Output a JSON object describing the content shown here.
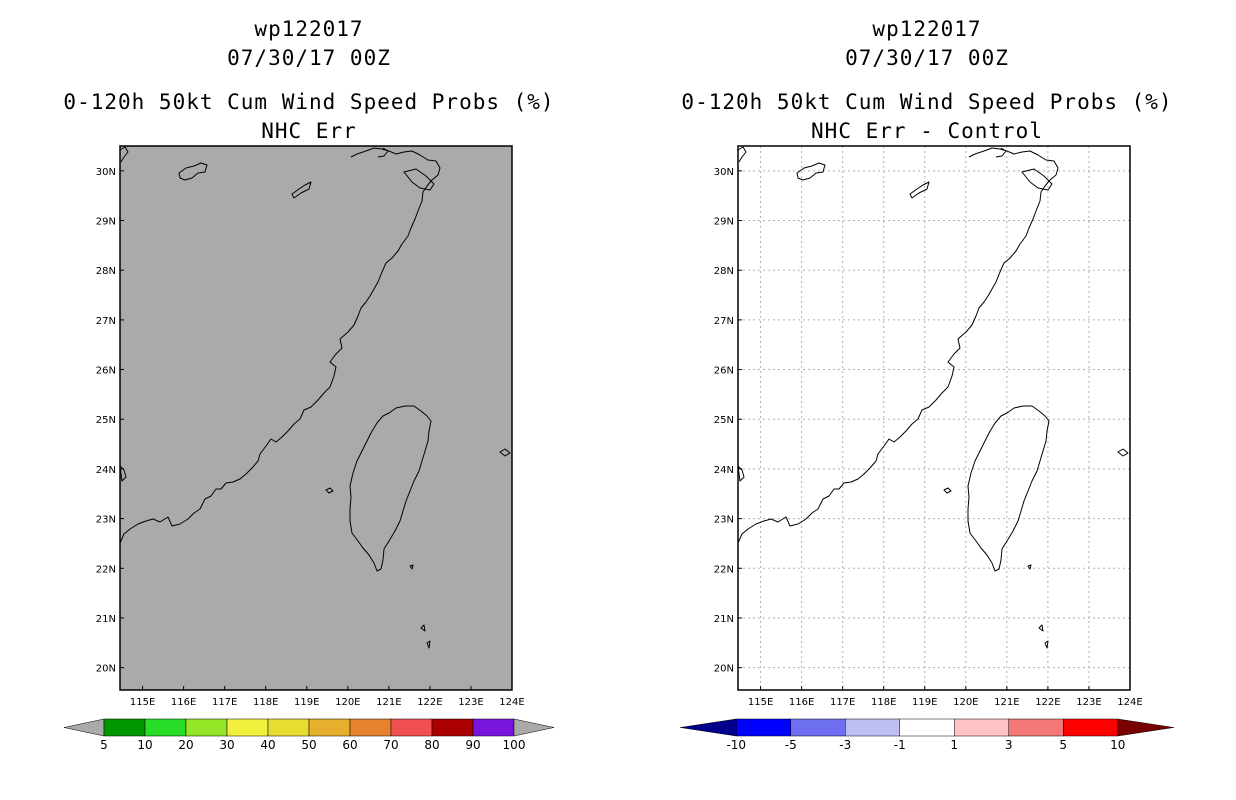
{
  "panels": [
    {
      "id": "left",
      "storm_id": "wp122017",
      "date": "07/30/17 00Z",
      "product": "0-120h 50kt Cum Wind Speed Probs (%)",
      "subtitle": "NHC Err",
      "map_fill": "#aaaaaa",
      "grid": false,
      "colorbar": {
        "labels": [
          "5",
          "10",
          "20",
          "30",
          "40",
          "50",
          "60",
          "70",
          "80",
          "90",
          "100"
        ],
        "colors": [
          "#009600",
          "#28dc28",
          "#96e628",
          "#f0f03c",
          "#e6dc32",
          "#e6af2d",
          "#e6822d",
          "#f05050",
          "#aa0000",
          "#7814dc"
        ],
        "under_color": "#aaaaaa",
        "over_color": "#aaaaaa"
      }
    },
    {
      "id": "right",
      "storm_id": "wp122017",
      "date": "07/30/17 00Z",
      "product": "0-120h 50kt Cum Wind Speed Probs (%)",
      "subtitle": "NHC Err - Control",
      "map_fill": "#ffffff",
      "grid": true,
      "colorbar": {
        "labels": [
          "-10",
          "-5",
          "-3",
          "-1",
          "1",
          "3",
          "5",
          "10"
        ],
        "colors": [
          "#0000ff",
          "#6e6ef0",
          "#bebef5",
          "#ffffff",
          "#ffc3c3",
          "#f57878",
          "#ff0000"
        ],
        "under_color": "#00008c",
        "over_color": "#780000"
      }
    }
  ],
  "map": {
    "lon_labels": [
      "115E",
      "116E",
      "117E",
      "118E",
      "119E",
      "120E",
      "121E",
      "122E",
      "123E",
      "124E"
    ],
    "lat_labels": [
      "30N",
      "29N",
      "28N",
      "27N",
      "26N",
      "25N",
      "24N",
      "23N",
      "22N",
      "21N",
      "20N"
    ],
    "lon_values": [
      115,
      116,
      117,
      118,
      119,
      120,
      121,
      122,
      123,
      124
    ],
    "lat_values": [
      30,
      29,
      28,
      27,
      26,
      25,
      24,
      23,
      22,
      21,
      20
    ],
    "lon_range": [
      114.45,
      124
    ],
    "lat_range": [
      19.55,
      30.5
    ]
  }
}
